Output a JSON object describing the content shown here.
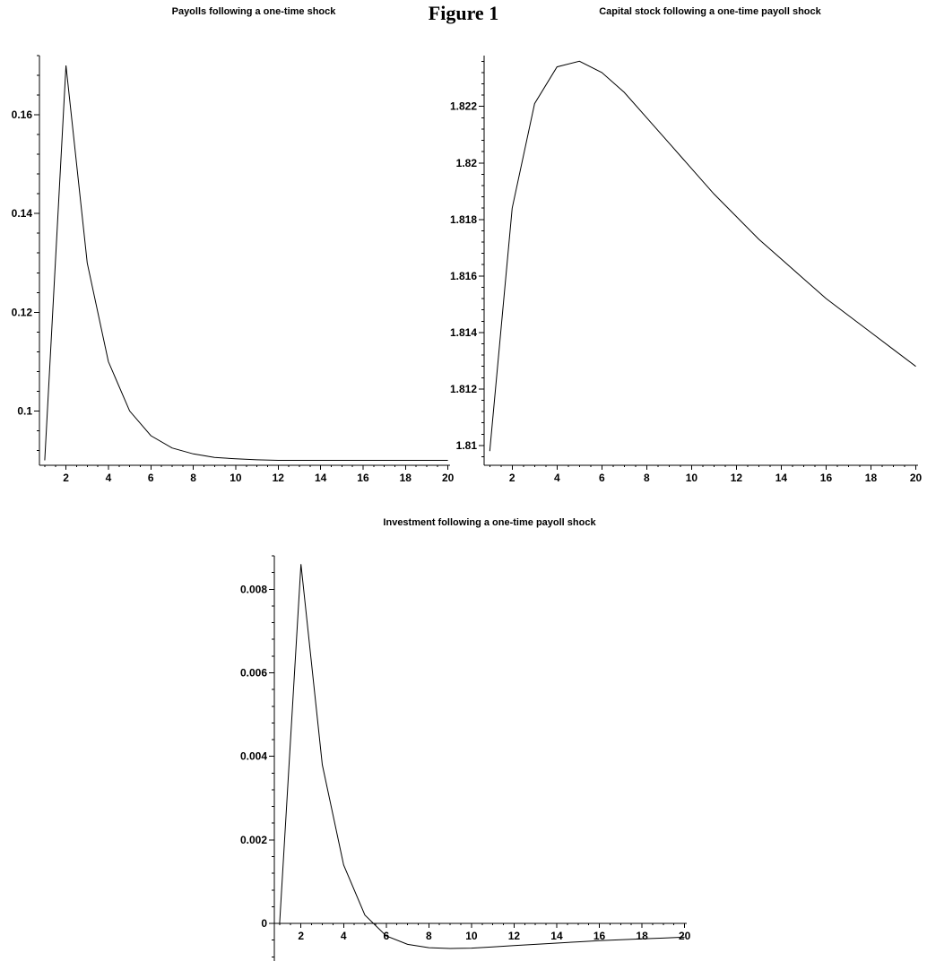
{
  "figure_title": "Figure 1",
  "chart_data": [
    {
      "type": "line",
      "title": "Payolls following a one-time shock",
      "xlabel": "",
      "ylabel": "",
      "xlim": [
        0.75,
        20.1
      ],
      "ylim": [
        0.089,
        0.172
      ],
      "x_ticks": [
        2,
        4,
        6,
        8,
        10,
        12,
        14,
        16,
        18,
        20
      ],
      "x_tick_labels": [
        "2",
        "4",
        "6",
        "8",
        "10",
        "12",
        "14",
        "16",
        "18",
        "20"
      ],
      "y_ticks": [
        0.1,
        0.12,
        0.14,
        0.16
      ],
      "y_tick_labels": [
        "0.1",
        "0.12",
        "0.14",
        "0.16"
      ],
      "grid": false,
      "series": [
        {
          "x": [
            1,
            2,
            3,
            4,
            5,
            6,
            7,
            8,
            9,
            10,
            11,
            12,
            13,
            14,
            15,
            16,
            17,
            18,
            19,
            20
          ],
          "values": [
            0.09,
            0.17,
            0.13,
            0.11,
            0.1,
            0.095,
            0.0925,
            0.0913,
            0.0906,
            0.0903,
            0.0901,
            0.09,
            0.09,
            0.09,
            0.09,
            0.09,
            0.09,
            0.09,
            0.09,
            0.09
          ]
        }
      ]
    },
    {
      "type": "line",
      "title": "Capital stock following a one-time payoll shock",
      "xlabel": "",
      "ylabel": "",
      "xlim": [
        0.75,
        20.1
      ],
      "ylim": [
        1.8093,
        1.8238
      ],
      "x_ticks": [
        2,
        4,
        6,
        8,
        10,
        12,
        14,
        16,
        18,
        20
      ],
      "x_tick_labels": [
        "2",
        "4",
        "6",
        "8",
        "10",
        "12",
        "14",
        "16",
        "18",
        "20"
      ],
      "y_ticks": [
        1.81,
        1.812,
        1.814,
        1.816,
        1.818,
        1.82,
        1.822
      ],
      "y_tick_labels": [
        "1.81",
        "1.812",
        "1.814",
        "1.816",
        "1.818",
        "1.82",
        "1.822"
      ],
      "grid": false,
      "series": [
        {
          "x": [
            1,
            2,
            3,
            4,
            5,
            6,
            7,
            8,
            9,
            10,
            11,
            12,
            13,
            14,
            15,
            16,
            17,
            18,
            19,
            20
          ],
          "values": [
            1.8098,
            1.8184,
            1.8221,
            1.8234,
            1.8236,
            1.8232,
            1.8225,
            1.8216,
            1.8207,
            1.8198,
            1.8189,
            1.8181,
            1.8173,
            1.8166,
            1.8159,
            1.8152,
            1.8146,
            1.814,
            1.8134,
            1.8128
          ]
        }
      ]
    },
    {
      "type": "line",
      "title": "Investment following a one-time payoll shock",
      "xlabel": "",
      "ylabel": "",
      "xlim": [
        0.75,
        20.1
      ],
      "ylim": [
        -0.0009,
        0.0088
      ],
      "x_ticks": [
        2,
        4,
        6,
        8,
        10,
        12,
        14,
        16,
        18,
        20
      ],
      "x_tick_labels": [
        "2",
        "4",
        "6",
        "8",
        "10",
        "12",
        "14",
        "16",
        "18",
        "20"
      ],
      "y_ticks": [
        0,
        0.002,
        0.004,
        0.006,
        0.008
      ],
      "y_tick_labels": [
        "0",
        "0.002",
        "0.004",
        "0.006",
        "0.008"
      ],
      "grid": false,
      "series": [
        {
          "x": [
            1,
            2,
            3,
            4,
            5,
            6,
            7,
            8,
            9,
            10,
            11,
            12,
            13,
            14,
            15,
            16,
            17,
            18,
            19,
            20
          ],
          "values": [
            0.0,
            0.0086,
            0.0038,
            0.0014,
            0.0002,
            -0.0003,
            -0.0005,
            -0.00058,
            -0.0006,
            -0.00059,
            -0.00056,
            -0.00053,
            -0.0005,
            -0.00047,
            -0.00044,
            -0.00041,
            -0.00039,
            -0.00037,
            -0.00035,
            -0.00033
          ]
        }
      ]
    }
  ]
}
